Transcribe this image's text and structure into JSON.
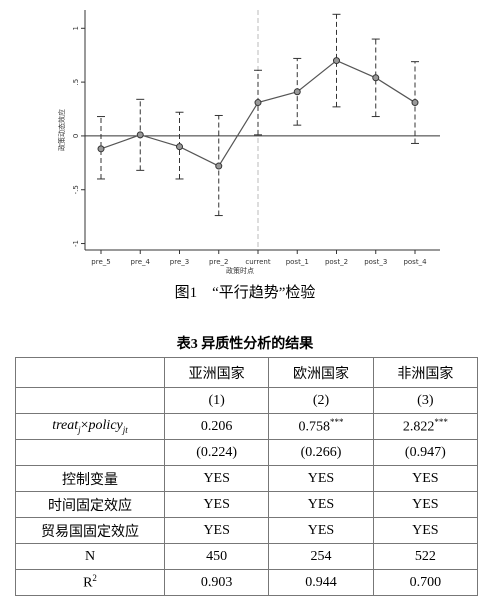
{
  "chart_data": {
    "type": "line",
    "x_label": "政策时点",
    "y_label": "政策动态效应",
    "categories": [
      "pre_5",
      "pre_4",
      "pre_3",
      "pre_2",
      "current",
      "post_1",
      "post_2",
      "post_3",
      "post_4"
    ],
    "values": [
      -0.12,
      0.01,
      -0.1,
      -0.28,
      0.31,
      0.41,
      0.7,
      0.54,
      0.31
    ],
    "ci_low": [
      -0.4,
      -0.32,
      -0.4,
      -0.74,
      0.01,
      0.1,
      0.27,
      0.18,
      -0.07
    ],
    "ci_high": [
      0.18,
      0.34,
      0.22,
      0.19,
      0.61,
      0.72,
      1.13,
      0.9,
      0.69
    ],
    "color": "#555555",
    "ylim": [
      -1.06,
      1.17
    ],
    "yticks": [
      {
        "value": -1,
        "label": "-1"
      },
      {
        "value": -0.5,
        "label": "-.5"
      },
      0,
      {
        "value": 0.5,
        "label": ".5"
      },
      1
    ]
  },
  "figure_caption": "图1　“平行趋势”检验",
  "table": {
    "title": "表3 异质性分析的结果",
    "header": [
      "",
      "亚洲国家",
      "欧洲国家",
      "非洲国家"
    ],
    "rows": [
      [
        "",
        "(1)",
        "(2)",
        "(3)"
      ],
      [
        [
          {
            "i": "treat"
          },
          {
            "sub": "j"
          },
          {
            "t": "×"
          },
          {
            "i": "policy"
          },
          {
            "sub": "jt"
          }
        ],
        "0.206",
        [
          {
            "t": "0.758"
          },
          {
            "sup": "***"
          }
        ],
        [
          {
            "t": "2.822"
          },
          {
            "sup": "***"
          }
        ]
      ],
      [
        "",
        "(0.224)",
        "(0.266)",
        "(0.947)"
      ],
      [
        "控制变量",
        "YES",
        "YES",
        "YES"
      ],
      [
        "时间固定效应",
        "YES",
        "YES",
        "YES"
      ],
      [
        "贸易国固定效应",
        "YES",
        "YES",
        "YES"
      ],
      [
        "N",
        "450",
        "254",
        "522"
      ],
      [
        [
          {
            "t": "R"
          },
          {
            "sup": "2"
          }
        ],
        "0.903",
        "0.944",
        "0.700"
      ]
    ]
  }
}
